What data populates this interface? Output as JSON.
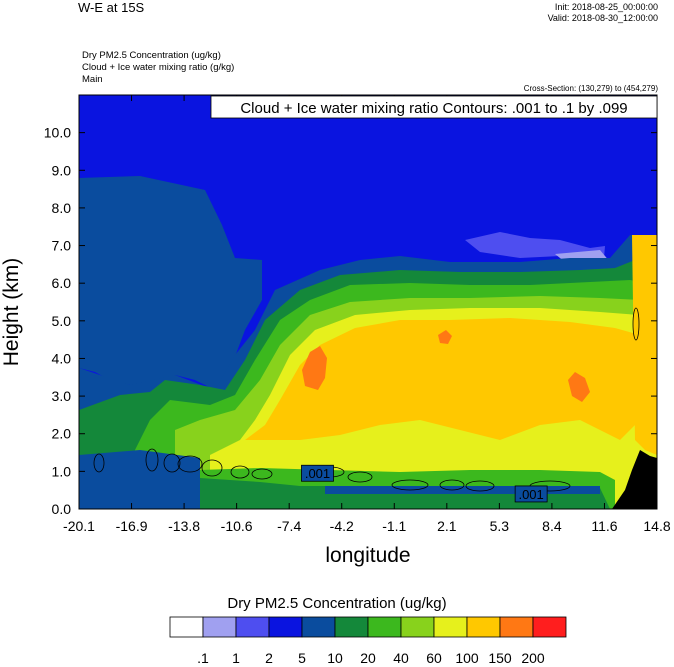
{
  "header": {
    "title": "W-E at 15S",
    "init": "Init: 2018-08-25_00:00:00",
    "valid": "Valid: 2018-08-30_12:00:00",
    "field1": "Dry PM2.5 Concentration   (ug/kg)",
    "field2": "Cloud + Ice water mixing ratio   (g/kg)",
    "field3": "Main",
    "cross_section": "Cross-Section: (130,279) to (454,279)"
  },
  "chart_data": {
    "type": "heatmap",
    "contour_title": "Cloud + Ice water mixing ratio Contours: .001 to .1 by .099",
    "xlabel": "longitude",
    "ylabel": "Height (km)",
    "xlim": [
      -20.1,
      14.8
    ],
    "ylim": [
      0.0,
      11.0
    ],
    "xticks": [
      "-20.1",
      "-16.9",
      "-13.8",
      "-10.6",
      "-7.4",
      "-4.2",
      "-1.1",
      "2.1",
      "5.3",
      "8.4",
      "11.6",
      "14.8"
    ],
    "yticks": [
      "0.0",
      "1.0",
      "2.0",
      "3.0",
      "4.0",
      "5.0",
      "6.0",
      "7.0",
      "8.0",
      "9.0",
      "10.0"
    ],
    "contour_labels": [
      {
        "text": ".001",
        "x": -5.7,
        "y": 0.95
      },
      {
        "text": ".001",
        "x": 7.2,
        "y": 0.4
      }
    ],
    "colorbar": {
      "title": "Dry PM2.5 Concentration  (ug/kg)",
      "levels": [
        ".1",
        "1",
        "2",
        "5",
        "10",
        "20",
        "40",
        "60",
        "100",
        "150",
        "200"
      ],
      "colors": [
        "#ffffff",
        "#a0a0f0",
        "#4e4ef0",
        "#0a14e0",
        "#0a4c9e",
        "#14883a",
        "#3cb81e",
        "#88d21c",
        "#e6f01c",
        "#ffc800",
        "#ff7814",
        "#ff1e1e"
      ]
    }
  }
}
